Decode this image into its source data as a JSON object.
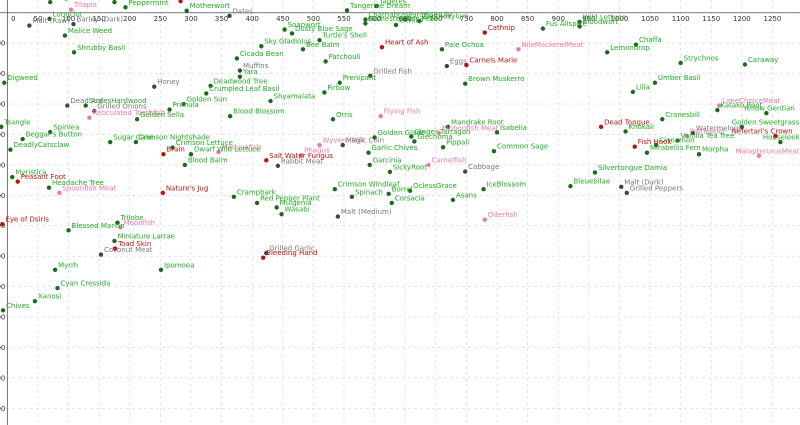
{
  "chart_data": {
    "type": "scatter",
    "title": "",
    "xlabel": "",
    "ylabel": "",
    "xlim": [
      -12,
      1295
    ],
    "ylim": [
      -1355,
      42
    ],
    "grid": true,
    "xticks": [
      0,
      50,
      100,
      150,
      200,
      250,
      300,
      350,
      400,
      450,
      500,
      550,
      600,
      650,
      700,
      750,
      800,
      850,
      900,
      950,
      1000,
      1050,
      1100,
      1150,
      1200,
      1250
    ],
    "yticks": [
      0,
      -100,
      -200,
      -300,
      -400,
      -500,
      -600,
      -700,
      -800,
      -900,
      -1000,
      -1100,
      -1200,
      -1300
    ],
    "points": [
      {
        "label": "Elegia",
        "x": 70,
        "y": 35,
        "c": "#22aa22"
      },
      {
        "label": "Tilapia",
        "x": 104,
        "y": 10,
        "c": "#ee77aa"
      },
      {
        "label": "Tamarask",
        "x": 175,
        "y": 35,
        "c": "#22aa22"
      },
      {
        "label": "Peppermint",
        "x": 193,
        "y": 18,
        "c": "#22aa22"
      },
      {
        "label": "Hairy Tooth",
        "x": 283,
        "y": 38,
        "c": "#bb1111"
      },
      {
        "label": "Motherwort",
        "x": 293,
        "y": 7,
        "c": "#22aa22"
      },
      {
        "label": "Dates",
        "x": 363,
        "y": -10,
        "c": "#777777"
      },
      {
        "label": "Tagetes",
        "x": 603,
        "y": 22,
        "c": "#22aa22"
      },
      {
        "label": "Tangerine Dream",
        "x": 555,
        "y": 8,
        "c": "#22aa22"
      },
      {
        "label": "Wild Lettuce",
        "x": 935,
        "y": -30,
        "c": "#22aa22"
      },
      {
        "label": "Chatnabras",
        "x": 585,
        "y": -22,
        "c": "#22aa22"
      },
      {
        "label": "Homesteaders Peas",
        "x": 585,
        "y": -35,
        "c": "#22aa22"
      },
      {
        "label": "Paradise Lily",
        "x": 650,
        "y": -22,
        "c": "#22aa22"
      },
      {
        "label": "Zanthoxylum",
        "x": 673,
        "y": -27,
        "c": "#22aa22"
      },
      {
        "label": "Citrillis",
        "x": 635,
        "y": -40,
        "c": "#22aa22"
      },
      {
        "label": "Lungclot",
        "x": 69,
        "y": -20,
        "c": "#22aa22"
      },
      {
        "label": "Malt (Raw)",
        "x": 36,
        "y": -42,
        "c": "#777777"
      },
      {
        "label": "Barley (Dark)",
        "x": 108,
        "y": -37,
        "c": "#777777"
      },
      {
        "label": "Malice Weed",
        "x": 94,
        "y": -75,
        "c": "#22aa22"
      },
      {
        "label": "Shrubby Basil",
        "x": 109,
        "y": -130,
        "c": "#22aa22"
      },
      {
        "label": "Soapwort",
        "x": 453,
        "y": -55,
        "c": "#22aa22"
      },
      {
        "label": "Dusty Blue Sage",
        "x": 465,
        "y": -68,
        "c": "#22aa22"
      },
      {
        "label": "Turtle's Shell",
        "x": 510,
        "y": -90,
        "c": "#22aa22"
      },
      {
        "label": "Sky Gladiolus",
        "x": 415,
        "y": -110,
        "c": "#22aa22"
      },
      {
        "label": "Bee Balm",
        "x": 483,
        "y": -120,
        "c": "#22aa22"
      },
      {
        "label": "Fus Allspice",
        "x": 875,
        "y": -52,
        "c": "#22aa22"
      },
      {
        "label": "Bloodwort",
        "x": 935,
        "y": -45,
        "c": "#22aa22"
      },
      {
        "label": "Cathnip",
        "x": 780,
        "y": -65,
        "c": "#bb1111"
      },
      {
        "label": "Heart of Ash",
        "x": 612,
        "y": -113,
        "c": "#bb1111"
      },
      {
        "label": "Pale Ochoa",
        "x": 710,
        "y": -120,
        "c": "#22aa22"
      },
      {
        "label": "NileMackerelMeat",
        "x": 835,
        "y": -120,
        "c": "#ee77aa"
      },
      {
        "label": "Chaffa",
        "x": 1027,
        "y": -105,
        "c": "#22aa22"
      },
      {
        "label": "Lemondrop",
        "x": 980,
        "y": -130,
        "c": "#22aa22"
      },
      {
        "label": "Cicada Bean",
        "x": 375,
        "y": -150,
        "c": "#22aa22"
      },
      {
        "label": "Patchouli",
        "x": 520,
        "y": -160,
        "c": "#22aa22"
      },
      {
        "label": "Muffins",
        "x": 380,
        "y": -190,
        "c": "#777777"
      },
      {
        "label": "Yara",
        "x": 380,
        "y": -210,
        "c": "#22aa22"
      },
      {
        "label": "Eggs",
        "x": 718,
        "y": -175,
        "c": "#777777"
      },
      {
        "label": "Grilled Fish",
        "x": 593,
        "y": -207,
        "c": "#777777"
      },
      {
        "label": "Carnels Marie",
        "x": 750,
        "y": -172,
        "c": "#bb1111"
      },
      {
        "label": "Prenipant",
        "x": 543,
        "y": -230,
        "c": "#22aa22"
      },
      {
        "label": "Strychnos",
        "x": 1100,
        "y": -165,
        "c": "#22aa22"
      },
      {
        "label": "Caraway",
        "x": 1205,
        "y": -170,
        "c": "#22aa22"
      },
      {
        "label": "Brown Muskerro",
        "x": 748,
        "y": -233,
        "c": "#22aa22"
      },
      {
        "label": "Umber Basil",
        "x": 1058,
        "y": -230,
        "c": "#22aa22"
      },
      {
        "label": "Digweed",
        "x": -5,
        "y": -230,
        "c": "#22aa22"
      },
      {
        "label": "Honey",
        "x": 240,
        "y": -243,
        "c": "#777777"
      },
      {
        "label": "Deadwood Tree",
        "x": 332,
        "y": -240,
        "c": "#22aa22"
      },
      {
        "label": "Crumpled Leaf Basil",
        "x": 325,
        "y": -265,
        "c": "#22aa22"
      },
      {
        "label": "Firbow",
        "x": 518,
        "y": -262,
        "c": "#22aa22"
      },
      {
        "label": "Lilia",
        "x": 1022,
        "y": -260,
        "c": "#22aa22"
      },
      {
        "label": "Shyamalata",
        "x": 430,
        "y": -290,
        "c": "#22aa22"
      },
      {
        "label": "Golden Sun",
        "x": 288,
        "y": -300,
        "c": "#22aa22"
      },
      {
        "label": "Primula",
        "x": 265,
        "y": -318,
        "c": "#22aa22"
      },
      {
        "label": "Dead Ant",
        "x": 98,
        "y": -305,
        "c": "#777777"
      },
      {
        "label": "ScalesHardwood",
        "x": 128,
        "y": -305,
        "c": "#22aa22"
      },
      {
        "label": "Grilled Onions",
        "x": 142,
        "y": -323,
        "c": "#777777"
      },
      {
        "label": "LimeChoiceMeat",
        "x": 1163,
        "y": -305,
        "c": "#ee77aa"
      },
      {
        "label": "Katako Root",
        "x": 1160,
        "y": -320,
        "c": "#22aa22"
      },
      {
        "label": "Yellow Gentian",
        "x": 1240,
        "y": -330,
        "c": "#22aa22"
      },
      {
        "label": "Reticulated Toothfish",
        "x": 134,
        "y": -345,
        "c": "#ee77aa"
      },
      {
        "label": "Golden Sella",
        "x": 212,
        "y": -350,
        "c": "#22aa22"
      },
      {
        "label": "Blood Blossom",
        "x": 364,
        "y": -340,
        "c": "#22aa22"
      },
      {
        "label": "Orris",
        "x": 532,
        "y": -350,
        "c": "#22aa22"
      },
      {
        "label": "Flying Fish",
        "x": 610,
        "y": -340,
        "c": "#ee77aa"
      },
      {
        "label": "Cranesbill",
        "x": 1070,
        "y": -350,
        "c": "#22aa22"
      },
      {
        "label": "Dead Tongue",
        "x": 970,
        "y": -375,
        "c": "#bb1111"
      },
      {
        "label": "Tsangle",
        "x": -10,
        "y": -375,
        "c": "#22aa22"
      },
      {
        "label": "Spirilea",
        "x": 70,
        "y": -392,
        "c": "#22aa22"
      },
      {
        "label": "Beggar's Button",
        "x": 25,
        "y": -415,
        "c": "#22aa22"
      },
      {
        "label": "Mandrake Root",
        "x": 720,
        "y": -375,
        "c": "#22aa22"
      },
      {
        "label": "Ribbonfish Meat",
        "x": 705,
        "y": -395,
        "c": "#ee77aa"
      },
      {
        "label": "Isabelia",
        "x": 800,
        "y": -393,
        "c": "#22aa22"
      },
      {
        "label": "Golden Sweetgrass",
        "x": 1200,
        "y": -375,
        "c": "#22aa22"
      },
      {
        "label": "Khokali",
        "x": 1010,
        "y": -390,
        "c": "#22aa22"
      },
      {
        "label": "Watermelons",
        "x": 1120,
        "y": -395,
        "c": "#777777"
      },
      {
        "label": "Nefertari's Crown",
        "x": 1255,
        "y": -405,
        "c": "#bb1111"
      },
      {
        "label": "Pattiepool",
        "x": 1110,
        "y": -405,
        "c": "#ee77aa"
      },
      {
        "label": "Vanilla Tea Tree",
        "x": 1095,
        "y": -420,
        "c": "#22aa22"
      },
      {
        "label": "Houseleek",
        "x": 1263,
        "y": -425,
        "c": "#22aa22"
      },
      {
        "label": "Cinnamon",
        "x": 1060,
        "y": -435,
        "c": "#22aa22"
      },
      {
        "label": "Golden Glade",
        "x": 600,
        "y": -410,
        "c": "#22aa22"
      },
      {
        "label": "Ginger Tarragon",
        "x": 660,
        "y": -407,
        "c": "#22aa22"
      },
      {
        "label": "Glechoma",
        "x": 665,
        "y": -423,
        "c": "#22aa22"
      },
      {
        "label": "Wyvern Milk",
        "x": 510,
        "y": -435,
        "c": "#ee77aa"
      },
      {
        "label": "Magic Coin",
        "x": 548,
        "y": -435,
        "c": "#777777"
      },
      {
        "label": "Pippali",
        "x": 712,
        "y": -442,
        "c": "#22aa22"
      },
      {
        "label": "Sugar Cane",
        "x": 168,
        "y": -425,
        "c": "#22aa22"
      },
      {
        "label": "DeadlyCatsclaw",
        "x": 5,
        "y": -450,
        "c": "#22aa22"
      },
      {
        "label": "Crimson Nightshade",
        "x": 210,
        "y": -425,
        "c": "#22aa22"
      },
      {
        "label": "Crimson Lettuce",
        "x": 270,
        "y": -443,
        "c": "#22aa22"
      },
      {
        "label": "Medusafish",
        "x": 345,
        "y": -458,
        "c": "#ee77aa"
      },
      {
        "label": "Dwarf Wild Lettuce",
        "x": 300,
        "y": -465,
        "c": "#22aa22"
      },
      {
        "label": "Brain",
        "x": 255,
        "y": -465,
        "c": "#bb1111"
      },
      {
        "label": "Garlic Chives",
        "x": 590,
        "y": -460,
        "c": "#22aa22"
      },
      {
        "label": "Phagus",
        "x": 480,
        "y": -468,
        "c": "#ee77aa"
      },
      {
        "label": "Fish Hook",
        "x": 1025,
        "y": -440,
        "c": "#bb1111"
      },
      {
        "label": "Mirabellis Fern",
        "x": 1045,
        "y": -460,
        "c": "#22aa22"
      },
      {
        "label": "Common Sage",
        "x": 795,
        "y": -455,
        "c": "#22aa22"
      },
      {
        "label": "Morpha",
        "x": 1130,
        "y": -465,
        "c": "#22aa22"
      },
      {
        "label": "MalapterurusMeat",
        "x": 1228,
        "y": -470,
        "c": "#ee77aa"
      },
      {
        "label": "Salt Water Fungus",
        "x": 423,
        "y": -485,
        "c": "#bb1111"
      },
      {
        "label": "Blood Balm",
        "x": 290,
        "y": -500,
        "c": "#22aa22"
      },
      {
        "label": "Rabbit Meat",
        "x": 442,
        "y": -503,
        "c": "#777777"
      },
      {
        "label": "Garcinia",
        "x": 592,
        "y": -500,
        "c": "#22aa22"
      },
      {
        "label": "Carnelfish",
        "x": 688,
        "y": -500,
        "c": "#ee77aa"
      },
      {
        "label": "Cabbage",
        "x": 748,
        "y": -522,
        "c": "#777777"
      },
      {
        "label": "SickyRoot",
        "x": 625,
        "y": -523,
        "c": "#22aa22"
      },
      {
        "label": "Silvertongue Damia",
        "x": 960,
        "y": -525,
        "c": "#22aa22"
      },
      {
        "label": "Myristica",
        "x": 8,
        "y": -540,
        "c": "#22aa22"
      },
      {
        "label": "Peasant Foot",
        "x": 17,
        "y": -555,
        "c": "#bb1111"
      },
      {
        "label": "Headache Tree",
        "x": 68,
        "y": -575,
        "c": "#22aa22"
      },
      {
        "label": "Spoonfish Meat",
        "x": 85,
        "y": -592,
        "c": "#ee77aa"
      },
      {
        "label": "Bleuebilae",
        "x": 920,
        "y": -570,
        "c": "#22aa22"
      },
      {
        "label": "Malt (Dark)",
        "x": 1003,
        "y": -572,
        "c": "#777777"
      },
      {
        "label": "Grilled Peppers",
        "x": 1012,
        "y": -592,
        "c": "#777777"
      },
      {
        "label": "Crimson Windleaf",
        "x": 535,
        "y": -580,
        "c": "#22aa22"
      },
      {
        "label": "OclessGrace",
        "x": 658,
        "y": -585,
        "c": "#22aa22"
      },
      {
        "label": "IceBlossom",
        "x": 778,
        "y": -580,
        "c": "#22aa22"
      },
      {
        "label": "Borrel",
        "x": 623,
        "y": -595,
        "c": "#22aa22"
      },
      {
        "label": "Spinach",
        "x": 563,
        "y": -605,
        "c": "#22aa22"
      },
      {
        "label": "Asans",
        "x": 728,
        "y": -615,
        "c": "#22aa22"
      },
      {
        "label": "Corsacia",
        "x": 628,
        "y": -625,
        "c": "#22aa22"
      },
      {
        "label": "Nature's Jug",
        "x": 254,
        "y": -592,
        "c": "#bb1111"
      },
      {
        "label": "Crampbark",
        "x": 370,
        "y": -605,
        "c": "#22aa22"
      },
      {
        "label": "Red Pepper Plant",
        "x": 408,
        "y": -625,
        "c": "#22aa22"
      },
      {
        "label": "Mulgenia",
        "x": 440,
        "y": -640,
        "c": "#22aa22"
      },
      {
        "label": "Wasabi",
        "x": 448,
        "y": -662,
        "c": "#22aa22"
      },
      {
        "label": "Malt (Medium)",
        "x": 540,
        "y": -670,
        "c": "#777777"
      },
      {
        "label": "Oiterfish",
        "x": 780,
        "y": -680,
        "c": "#ee77aa"
      },
      {
        "label": "Eye of Dsiris",
        "x": -8,
        "y": -695,
        "c": "#bb1111"
      },
      {
        "label": "Trilobe",
        "x": 180,
        "y": -690,
        "c": "#22aa22"
      },
      {
        "label": "Moonfish",
        "x": 185,
        "y": -705,
        "c": "#ee77aa"
      },
      {
        "label": "Blessed Marian",
        "x": 100,
        "y": -715,
        "c": "#22aa22"
      },
      {
        "label": "Miniature Larrae",
        "x": 175,
        "y": -750,
        "c": "#22aa22"
      },
      {
        "label": "Toad Skin",
        "x": 176,
        "y": -775,
        "c": "#bb1111"
      },
      {
        "label": "Coconut Meat",
        "x": 153,
        "y": -795,
        "c": "#777777"
      },
      {
        "label": "Grilled Garlic",
        "x": 423,
        "y": -790,
        "c": "#777777"
      },
      {
        "label": "Bleeding Hand",
        "x": 418,
        "y": -805,
        "c": "#bb1111"
      },
      {
        "label": "Myrrh",
        "x": 78,
        "y": -845,
        "c": "#22aa22"
      },
      {
        "label": "Ipomoea",
        "x": 251,
        "y": -845,
        "c": "#22aa22"
      },
      {
        "label": "Cyan Cressida",
        "x": 82,
        "y": -905,
        "c": "#22aa22"
      },
      {
        "label": "Xanosi",
        "x": 45,
        "y": -948,
        "c": "#22aa22"
      },
      {
        "label": "Chives",
        "x": -7,
        "y": -978,
        "c": "#22aa22"
      }
    ]
  }
}
